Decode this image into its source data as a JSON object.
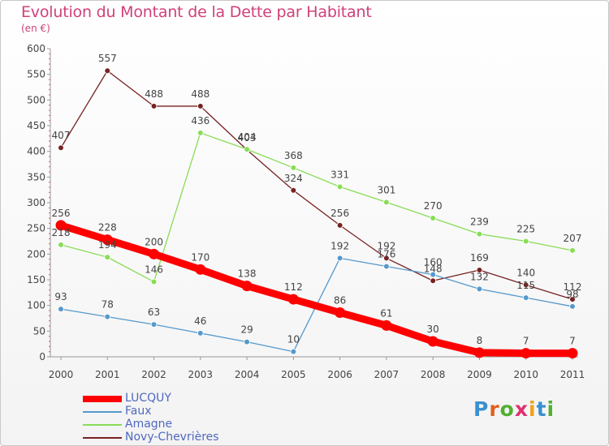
{
  "title": "Evolution du Montant de la Dette par Habitant",
  "unit_label": "(en €)",
  "logo": {
    "text": "Proxiti",
    "colors": [
      "#3a90d0",
      "#e06020",
      "#50b030",
      "#e03070",
      "#f0a020",
      "#3a90d0",
      "#50b030"
    ]
  },
  "chart_data": {
    "type": "line",
    "title": "Evolution du Montant de la Dette par Habitant",
    "ylabel": "(en €)",
    "x": [
      "2000",
      "2001",
      "2002",
      "2003",
      "2004",
      "2005",
      "2006",
      "2007",
      "2008",
      "2009",
      "2010",
      "2011"
    ],
    "ylim": [
      0,
      600
    ],
    "yticks": [
      "0",
      "50",
      "100",
      "150",
      "200",
      "250",
      "300",
      "350",
      "400",
      "450",
      "500",
      "550",
      "600"
    ],
    "grid": false,
    "legend": "bottom-left",
    "series": [
      {
        "name": "LUCQUY",
        "color": "#ff0000",
        "emphasis": "thick",
        "values": [
          256,
          228,
          200,
          170,
          138,
          112,
          86,
          61,
          30,
          8,
          7,
          7
        ],
        "labels": [
          "256",
          "228",
          "200",
          "170",
          "138",
          "112",
          "86",
          "61",
          "30",
          "8",
          "7",
          "7"
        ]
      },
      {
        "name": "Faux",
        "color": "#5599cc",
        "values": [
          93,
          78,
          63,
          46,
          29,
          10,
          192,
          176,
          160,
          132,
          115,
          98
        ],
        "labels": [
          "93",
          "78",
          "63",
          "46",
          "29",
          "10",
          "192",
          "176",
          "160",
          "132",
          "115",
          "98"
        ]
      },
      {
        "name": "Amagne",
        "color": "#88dd55",
        "values": [
          218,
          194,
          146,
          436,
          404,
          368,
          331,
          301,
          270,
          239,
          225,
          207
        ],
        "labels": [
          "218",
          "194",
          "146",
          "436",
          "404",
          "368",
          "331",
          "301",
          "270",
          "239",
          "225",
          "207"
        ]
      },
      {
        "name": "Novy-Chevrières",
        "color": "#772222",
        "values": [
          407,
          557,
          488,
          488,
          403,
          324,
          256,
          192,
          148,
          169,
          140,
          112
        ],
        "labels": [
          "407",
          "557",
          "488",
          "488",
          "403",
          "324",
          "256",
          "192",
          "148",
          "169",
          "140",
          "112"
        ]
      }
    ]
  }
}
